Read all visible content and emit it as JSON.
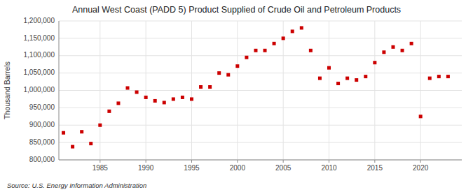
{
  "chart_data": {
    "type": "scatter",
    "title": "Annual West Coast (PADD 5) Product Supplied of Crude Oil and Petroleum Products",
    "ylabel": "Thousand Barrels",
    "source": "Source: U.S. Energy Information Administration",
    "color": "#cc0000",
    "marker": "square",
    "x": [
      1981,
      1982,
      1983,
      1984,
      1985,
      1986,
      1987,
      1988,
      1989,
      1990,
      1991,
      1992,
      1993,
      1994,
      1995,
      1996,
      1997,
      1998,
      1999,
      2000,
      2001,
      2002,
      2003,
      2004,
      2005,
      2006,
      2007,
      2008,
      2009,
      2010,
      2011,
      2012,
      2013,
      2014,
      2015,
      2016,
      2017,
      2018,
      2019,
      2020,
      2021,
      2022,
      2023
    ],
    "values": [
      878000,
      838000,
      881000,
      847000,
      900000,
      940000,
      963000,
      1007000,
      995000,
      980000,
      970000,
      965000,
      975000,
      980000,
      975000,
      1010000,
      1010000,
      1050000,
      1045000,
      1070000,
      1095000,
      1115000,
      1115000,
      1135000,
      1150000,
      1170000,
      1180000,
      1115000,
      1035000,
      1065000,
      1020000,
      1035000,
      1030000,
      1040000,
      1080000,
      1110000,
      1125000,
      1115000,
      1135000,
      925000,
      1035000,
      1040000,
      1040000
    ],
    "xlim": [
      1980.5,
      2024.5
    ],
    "xticks": [
      1985,
      1990,
      1995,
      2000,
      2005,
      2010,
      2015,
      2020
    ],
    "ylim": [
      800000,
      1200000
    ],
    "yticks": [
      {
        "value": 800000,
        "label": "800,000"
      },
      {
        "value": 850000,
        "label": "850,000"
      },
      {
        "value": 900000,
        "label": "900,000"
      },
      {
        "value": 950000,
        "label": "950,000"
      },
      {
        "value": 1000000,
        "label": "1,000,000"
      },
      {
        "value": 1050000,
        "label": "1,050,000"
      },
      {
        "value": 1100000,
        "label": "1,100,000"
      },
      {
        "value": 1150000,
        "label": "1,150,000"
      },
      {
        "value": 1200000,
        "label": "1,200,000"
      }
    ],
    "grid": true
  }
}
